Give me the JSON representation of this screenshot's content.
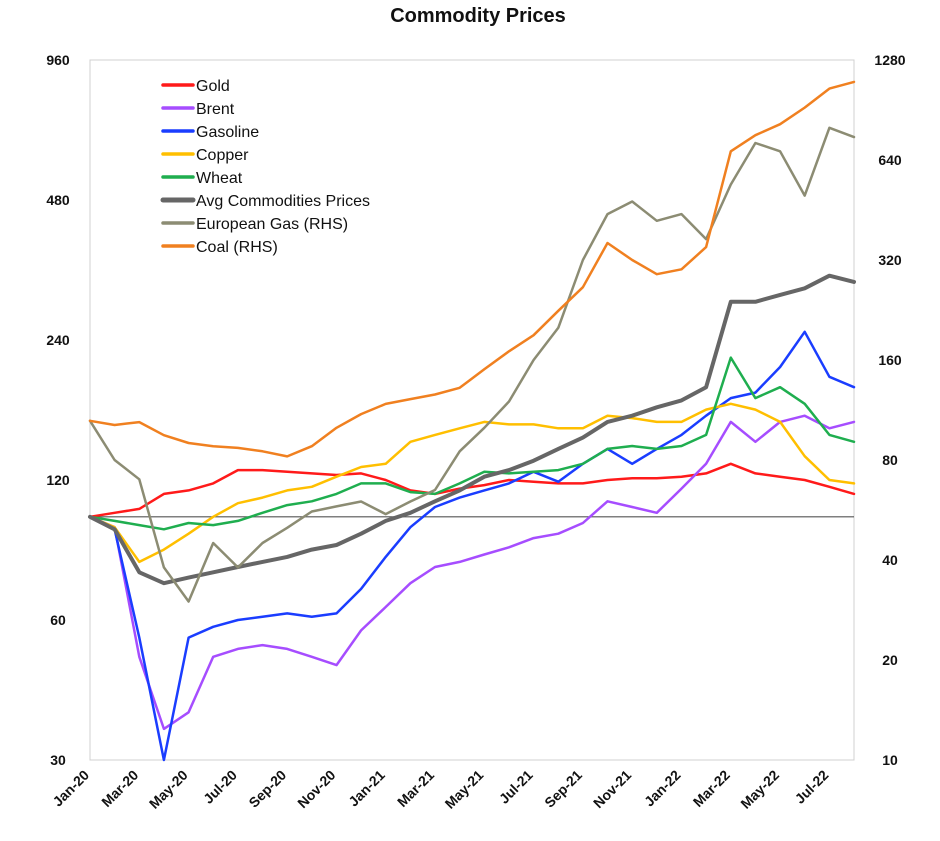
{
  "chart_data": {
    "type": "line",
    "title": "Commodity Prices",
    "x": [
      "Jan-20",
      "Feb-20",
      "Mar-20",
      "Apr-20",
      "May-20",
      "Jun-20",
      "Jul-20",
      "Aug-20",
      "Sep-20",
      "Oct-20",
      "Nov-20",
      "Dec-20",
      "Jan-21",
      "Feb-21",
      "Mar-21",
      "Apr-21",
      "May-21",
      "Jun-21",
      "Jul-21",
      "Aug-21",
      "Sep-21",
      "Oct-21",
      "Nov-21",
      "Dec-21",
      "Jan-22",
      "Feb-22",
      "Mar-22",
      "Apr-22",
      "May-22",
      "Jun-22",
      "Jul-22",
      "Aug-22"
    ],
    "x_tick_labels": [
      "Jan-20",
      "Mar-20",
      "May-20",
      "Jul-20",
      "Sep-20",
      "Nov-20",
      "Jan-21",
      "Mar-21",
      "May-21",
      "Jul-21",
      "Sep-21",
      "Nov-21",
      "Jan-22",
      "Mar-22",
      "May-22",
      "Jul-22"
    ],
    "y_left": {
      "scale": "log",
      "range": [
        30,
        960
      ],
      "ticks": [
        "30",
        "60",
        "120",
        "240",
        "480",
        "960"
      ]
    },
    "y_right": {
      "scale": "log",
      "range": [
        10,
        1280
      ],
      "ticks": [
        "10",
        "20",
        "40",
        "80",
        "160",
        "320",
        "640",
        "1280"
      ]
    },
    "reference_line": {
      "axis": "left",
      "value": 100
    },
    "legend_position": "top-left",
    "series": [
      {
        "name": "Gold",
        "color": "#ff1a1a",
        "axis": "left",
        "values": [
          100,
          102,
          104,
          112,
          114,
          118,
          126,
          126,
          125,
          124,
          123,
          124,
          120,
          114,
          112,
          115,
          117,
          120,
          119,
          118,
          118,
          120,
          121,
          121,
          122,
          124,
          130,
          124,
          122,
          120,
          116,
          112
        ]
      },
      {
        "name": "Brent",
        "color": "#a64dff",
        "axis": "left",
        "values": [
          100,
          95,
          50,
          35,
          38,
          50,
          52,
          53,
          52,
          50,
          48,
          57,
          64,
          72,
          78,
          80,
          83,
          86,
          90,
          92,
          97,
          108,
          105,
          102,
          115,
          130,
          160,
          145,
          160,
          165,
          155,
          160
        ]
      },
      {
        "name": "Gasoline",
        "color": "#1a3dff",
        "axis": "left",
        "values": [
          100,
          94,
          55,
          30,
          55,
          58,
          60,
          61,
          62,
          61,
          62,
          70,
          82,
          95,
          105,
          110,
          114,
          118,
          125,
          119,
          130,
          140,
          130,
          140,
          150,
          165,
          180,
          185,
          210,
          250,
          200,
          190
        ]
      },
      {
        "name": "Copper",
        "color": "#ffbf00",
        "axis": "left",
        "values": [
          100,
          95,
          80,
          85,
          92,
          100,
          107,
          110,
          114,
          116,
          122,
          128,
          130,
          145,
          150,
          155,
          160,
          158,
          158,
          155,
          155,
          165,
          163,
          160,
          160,
          170,
          175,
          170,
          160,
          135,
          120,
          118
        ]
      },
      {
        "name": "Wheat",
        "color": "#1fae4f",
        "axis": "left",
        "values": [
          100,
          98,
          96,
          94,
          97,
          96,
          98,
          102,
          106,
          108,
          112,
          118,
          118,
          113,
          112,
          118,
          125,
          124,
          125,
          126,
          130,
          140,
          142,
          140,
          142,
          150,
          220,
          180,
          190,
          175,
          150,
          145
        ]
      },
      {
        "name": "Avg Commodities Prices",
        "color": "#666666",
        "axis": "left",
        "values": [
          100,
          94,
          76,
          72,
          74,
          76,
          78,
          80,
          82,
          85,
          87,
          92,
          98,
          102,
          108,
          114,
          122,
          126,
          132,
          140,
          148,
          160,
          165,
          172,
          178,
          190,
          290,
          290,
          300,
          310,
          330,
          320
        ]
      },
      {
        "name": "European Gas (RHS)",
        "color": "#8c8c73",
        "axis": "right",
        "values": [
          105,
          80,
          70,
          38,
          30,
          45,
          38,
          45,
          50,
          56,
          58,
          60,
          55,
          60,
          65,
          85,
          100,
          120,
          160,
          200,
          320,
          440,
          480,
          420,
          440,
          370,
          540,
          720,
          680,
          500,
          800,
          750
        ]
      },
      {
        "name": "Coal (RHS)",
        "color": "#f08020",
        "axis": "right",
        "values": [
          105,
          102,
          104,
          95,
          90,
          88,
          87,
          85,
          82,
          88,
          100,
          110,
          118,
          122,
          126,
          132,
          150,
          170,
          190,
          225,
          265,
          360,
          320,
          290,
          300,
          350,
          680,
          760,
          820,
          920,
          1050,
          1100
        ]
      }
    ]
  }
}
